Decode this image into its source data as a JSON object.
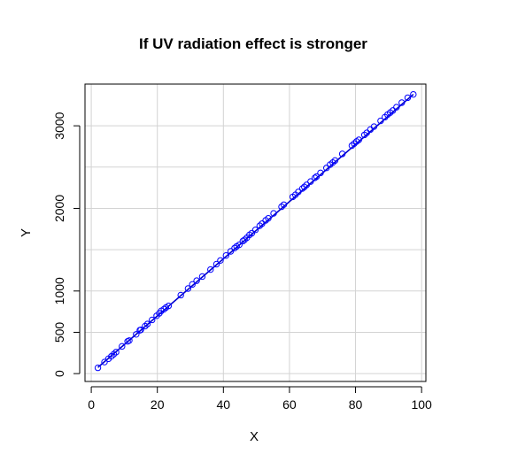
{
  "chart_data": {
    "type": "scatter",
    "title": "If UV radiation effect is stronger",
    "xlabel": "X",
    "ylabel": "Y",
    "xlim": [
      -1.9,
      101.3
    ],
    "ylim": [
      -95,
      3505
    ],
    "xticks": [
      0,
      20,
      40,
      60,
      80,
      100
    ],
    "yticks": [
      0,
      500,
      1000,
      2000,
      3000
    ],
    "grid": true,
    "grid_x": [
      0,
      20,
      40,
      60,
      80,
      100
    ],
    "grid_y": [
      0,
      500,
      1000,
      1500,
      2000,
      2500,
      3000
    ],
    "point_color": "#0000ff",
    "line_color": "#0000cc",
    "fit_line": {
      "x": [
        2,
        97.5
      ],
      "y": [
        75,
        3380
      ]
    },
    "x": [
      2.0,
      4.0,
      5.2,
      6.1,
      6.8,
      7.5,
      9.3,
      11.0,
      11.5,
      13.6,
      14.7,
      15.0,
      16.3,
      17.0,
      18.4,
      19.8,
      20.6,
      21.2,
      22.0,
      22.6,
      23.4,
      27.1,
      29.3,
      30.6,
      31.9,
      33.6,
      36.1,
      37.9,
      39.1,
      40.8,
      42.2,
      43.4,
      44.0,
      44.8,
      45.9,
      46.4,
      47.1,
      47.9,
      48.6,
      49.7,
      51.0,
      51.7,
      52.8,
      53.6,
      55.2,
      57.6,
      58.3,
      61.0,
      61.8,
      62.7,
      63.9,
      64.5,
      65.2,
      66.4,
      67.7,
      68.2,
      69.4,
      71.2,
      72.3,
      73.1,
      73.8,
      76.0,
      78.9,
      79.6,
      80.3,
      81.0,
      82.7,
      83.4,
      84.5,
      85.6,
      87.6,
      88.9,
      89.7,
      90.5,
      91.3,
      92.4,
      94.0,
      95.8,
      97.5
    ],
    "y": [
      70,
      140,
      180,
      210,
      235,
      260,
      330,
      390,
      400,
      475,
      525,
      530,
      575,
      600,
      650,
      700,
      730,
      760,
      780,
      800,
      820,
      950,
      1030,
      1080,
      1125,
      1175,
      1260,
      1325,
      1370,
      1430,
      1480,
      1520,
      1540,
      1560,
      1605,
      1620,
      1645,
      1680,
      1700,
      1740,
      1790,
      1815,
      1855,
      1880,
      1940,
      2020,
      2045,
      2140,
      2165,
      2200,
      2240,
      2260,
      2285,
      2325,
      2370,
      2385,
      2430,
      2490,
      2530,
      2555,
      2580,
      2660,
      2760,
      2785,
      2810,
      2830,
      2890,
      2915,
      2955,
      2990,
      3060,
      3105,
      3135,
      3160,
      3185,
      3225,
      3280,
      3340,
      3380
    ]
  }
}
